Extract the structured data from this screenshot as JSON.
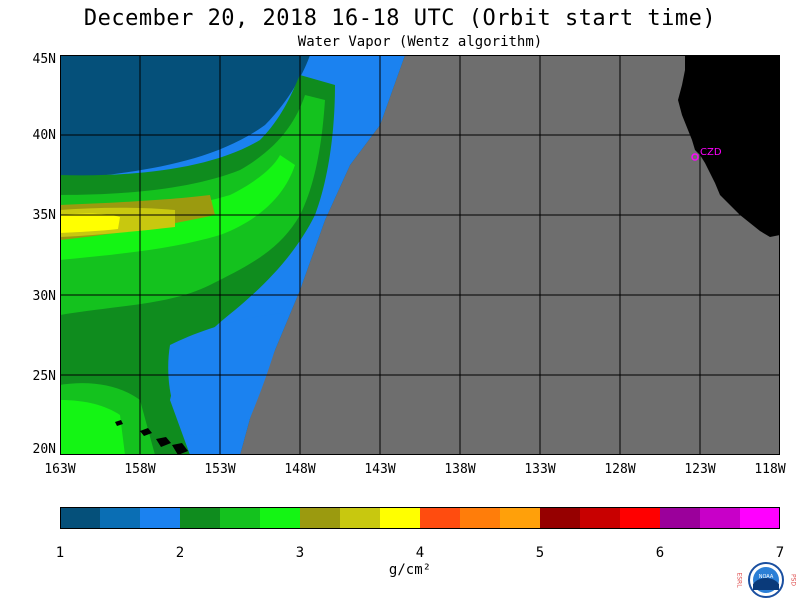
{
  "title": "December 20, 2018  16-18 UTC  (Orbit start time)",
  "subtitle": "Water Vapor (Wentz algorithm)",
  "lat_labels": [
    "45N",
    "40N",
    "35N",
    "30N",
    "25N",
    "20N"
  ],
  "lon_labels": [
    "163W",
    "158W",
    "153W",
    "148W",
    "143W",
    "138W",
    "133W",
    "128W",
    "123W",
    "118W"
  ],
  "station_label": "CZD",
  "colorbar": {
    "ticks": [
      "1",
      "2",
      "3",
      "4",
      "5",
      "6",
      "7"
    ],
    "units": "g/cm²",
    "range": [
      1,
      7
    ],
    "colors": [
      "#05507a",
      "#0a6eb4",
      "#1b82f0",
      "#0f8c1e",
      "#14c21e",
      "#14f514",
      "#9b9a0f",
      "#c8c80f",
      "#ffff00",
      "#ff4c0f",
      "#ff7d0a",
      "#ffa00a",
      "#960000",
      "#c80000",
      "#ff0000",
      "#9b009b",
      "#c800c8",
      "#ff00ff"
    ]
  },
  "colors": {
    "no_data": "#6e6e6e",
    "land": "#000000",
    "grid": "#000000",
    "station": "#ff00ff"
  },
  "logo": {
    "left_letters": "ESRL",
    "right_letters": "PSD",
    "center": "NOAA"
  }
}
